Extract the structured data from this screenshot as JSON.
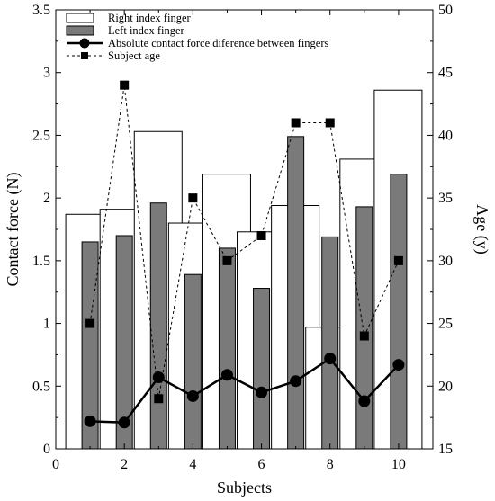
{
  "chart_data": {
    "type": "bar",
    "x": [
      1,
      2,
      3,
      4,
      5,
      6,
      7,
      8,
      9,
      10
    ],
    "xlabel": "Subjects",
    "ylabel": "Contact force (N)",
    "y2label": "Age (y)",
    "xlim": [
      0,
      11
    ],
    "ylim": [
      0,
      3.5
    ],
    "y2lim": [
      15,
      50
    ],
    "xticks": [
      "0",
      "2",
      "4",
      "6",
      "8",
      "10"
    ],
    "yticks": [
      "0",
      "0.5",
      "1",
      "1.5",
      "2",
      "2.5",
      "3",
      "3.5"
    ],
    "y2ticks": [
      "15",
      "20",
      "25",
      "30",
      "35",
      "40",
      "45",
      "50"
    ],
    "grid": false,
    "legend_position": "top-left",
    "series": [
      {
        "name": "Right index finger",
        "kind": "bar",
        "axis": "left",
        "color": "#ffffff",
        "values": [
          1.87,
          1.91,
          2.53,
          1.8,
          2.19,
          1.73,
          1.94,
          0.97,
          2.31,
          2.86
        ]
      },
      {
        "name": "Left index finger",
        "kind": "bar",
        "axis": "left",
        "color": "#7a7a7a",
        "values": [
          1.65,
          1.7,
          1.96,
          1.39,
          1.6,
          1.28,
          2.49,
          1.69,
          1.93,
          2.19
        ]
      },
      {
        "name": "Absolute contact force diference between fingers",
        "kind": "line",
        "axis": "left",
        "color": "#000000",
        "values": [
          0.22,
          0.21,
          0.57,
          0.42,
          0.59,
          0.45,
          0.54,
          0.72,
          0.38,
          0.67
        ]
      },
      {
        "name": "Subject age",
        "kind": "dashed-line",
        "axis": "right",
        "color": "#000000",
        "values": [
          25,
          44,
          19,
          35,
          30,
          32,
          41,
          41,
          24,
          30
        ]
      }
    ]
  }
}
